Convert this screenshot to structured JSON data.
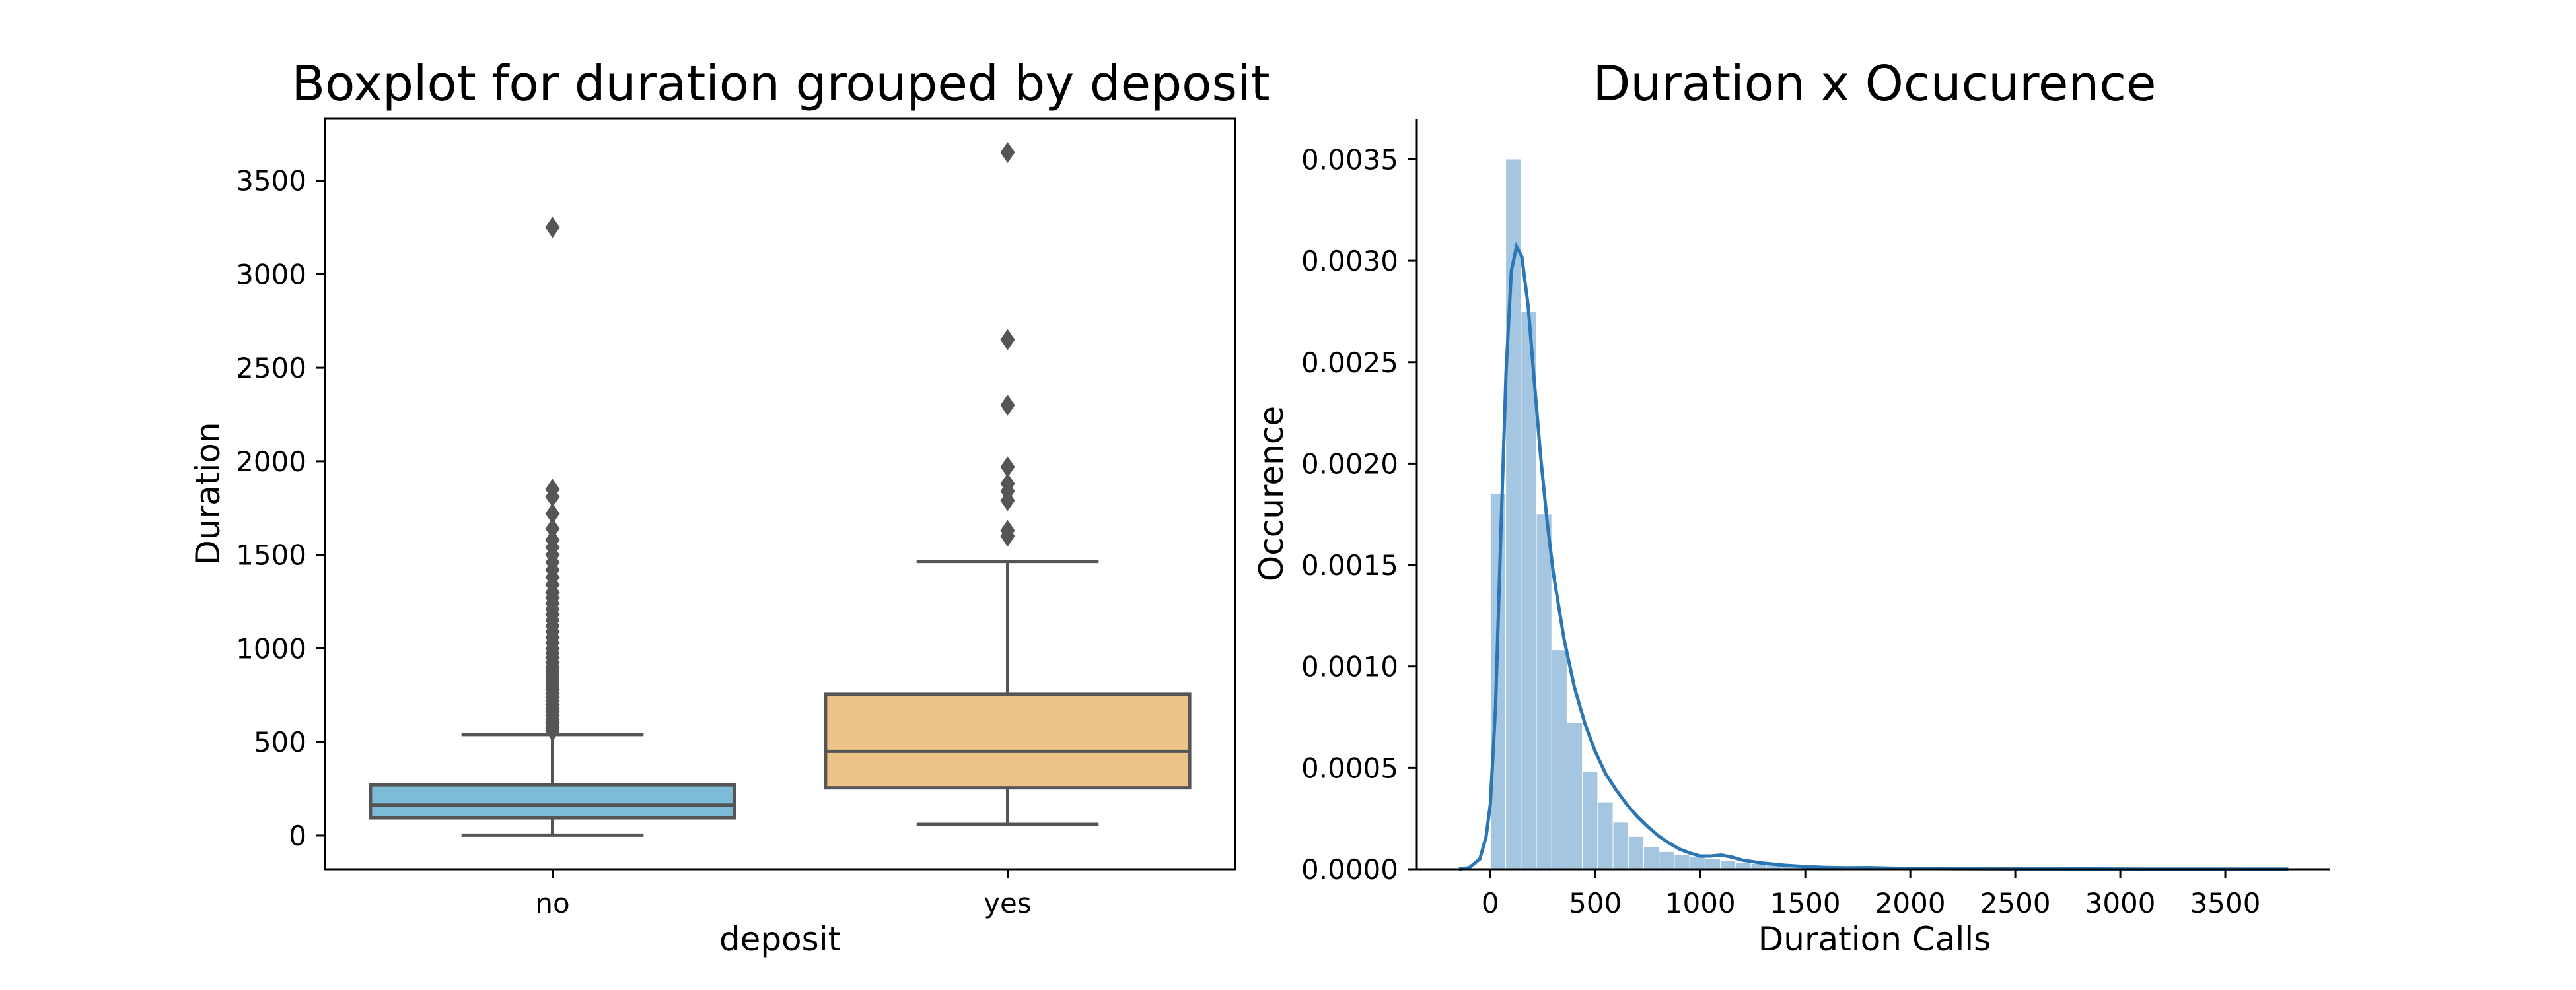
{
  "colors": {
    "no_box": "#7dbcd6",
    "yes_box": "#edc487",
    "box_line": "#555555",
    "hist_bar": "#a4c6e1",
    "kde_line": "#2b76b4"
  },
  "chart_data": [
    {
      "type": "box",
      "title": "Boxplot for duration grouped by deposit",
      "xlabel": "deposit",
      "ylabel": "Duration",
      "ylim": [
        -180,
        3830
      ],
      "yticks": [
        0,
        500,
        1000,
        1500,
        2000,
        2500,
        3000,
        3500
      ],
      "categories": [
        "no",
        "yes"
      ],
      "boxes": [
        {
          "category": "no",
          "whisker_low": 2,
          "q1": 95,
          "median": 163,
          "q3": 271,
          "whisker_high": 540,
          "outliers": [
            560,
            575,
            590,
            605,
            620,
            640,
            660,
            680,
            700,
            720,
            740,
            760,
            780,
            800,
            820,
            840,
            860,
            880,
            900,
            925,
            950,
            975,
            1000,
            1030,
            1060,
            1090,
            1120,
            1150,
            1180,
            1210,
            1240,
            1270,
            1300,
            1340,
            1380,
            1420,
            1460,
            1500,
            1540,
            1580,
            1640,
            1720,
            1810,
            1850,
            3250
          ]
        },
        {
          "category": "yes",
          "whisker_low": 60,
          "q1": 255,
          "median": 450,
          "q3": 755,
          "whisker_high": 1465,
          "outliers": [
            1600,
            1630,
            1790,
            1840,
            1880,
            1970,
            2300,
            2650,
            3650
          ]
        }
      ]
    },
    {
      "type": "histogram",
      "title": "Duration x Ocucurence",
      "xlabel": "Duration Calls",
      "ylabel": "Occurence",
      "xlim": [
        -350,
        4000
      ],
      "ylim": [
        0,
        0.0037
      ],
      "xticks": [
        0,
        500,
        1000,
        1500,
        2000,
        2500,
        3000,
        3500
      ],
      "yticks": [
        "0.0000",
        "0.0005",
        "0.0010",
        "0.0015",
        "0.0020",
        "0.0025",
        "0.0030",
        "0.0035"
      ],
      "bin_width": 73,
      "bins_start": 2,
      "bar_values": [
        0.00185,
        0.0035,
        0.00275,
        0.00175,
        0.00108,
        0.00072,
        0.00048,
        0.00033,
        0.00023,
        0.00016,
        0.00011,
        8.5e-05,
        7e-05,
        6e-05,
        5e-05,
        4e-05,
        3.2e-05,
        2.6e-05,
        2.1e-05,
        1.7e-05,
        1.4e-05,
        1.1e-05,
        1e-05,
        1.2e-05,
        8e-06,
        6e-06,
        5e-06,
        4e-06,
        4e-06,
        3e-06,
        3e-06,
        2e-06,
        2e-06,
        2e-06,
        2e-06,
        1e-06,
        1e-06,
        1e-06,
        1e-06,
        1e-06,
        1e-06,
        1e-06,
        1e-06,
        1e-06,
        1e-06,
        1e-06,
        1e-06,
        1e-06,
        1e-06,
        1e-06
      ],
      "kde": {
        "x": [
          -150,
          -100,
          -50,
          -20,
          0,
          25,
          50,
          75,
          100,
          125,
          150,
          180,
          210,
          240,
          270,
          300,
          350,
          400,
          450,
          500,
          550,
          600,
          650,
          700,
          750,
          800,
          850,
          900,
          950,
          1000,
          1050,
          1100,
          1150,
          1200,
          1300,
          1400,
          1500,
          1600,
          1700,
          1800,
          1900,
          2000,
          2200,
          2500,
          2800,
          3000,
          3200,
          3400,
          3600,
          3800
        ],
        "y": [
          0,
          8e-06,
          5e-05,
          0.00016,
          0.00032,
          0.0008,
          0.00165,
          0.00245,
          0.00295,
          0.00307,
          0.00302,
          0.00278,
          0.0024,
          0.00203,
          0.00172,
          0.00146,
          0.00114,
          0.0009,
          0.00072,
          0.00058,
          0.00047,
          0.00039,
          0.00032,
          0.00026,
          0.00021,
          0.000165,
          0.00013,
          0.0001,
          8e-05,
          6.5e-05,
          6.5e-05,
          7e-05,
          6e-05,
          4.5e-05,
          3e-05,
          2e-05,
          1.3e-05,
          9e-06,
          7e-06,
          8e-06,
          6e-06,
          4e-06,
          3e-06,
          2e-06,
          1.5e-06,
          1.2e-06,
          1e-06,
          1e-06,
          8e-07,
          5e-07
        ]
      }
    }
  ]
}
